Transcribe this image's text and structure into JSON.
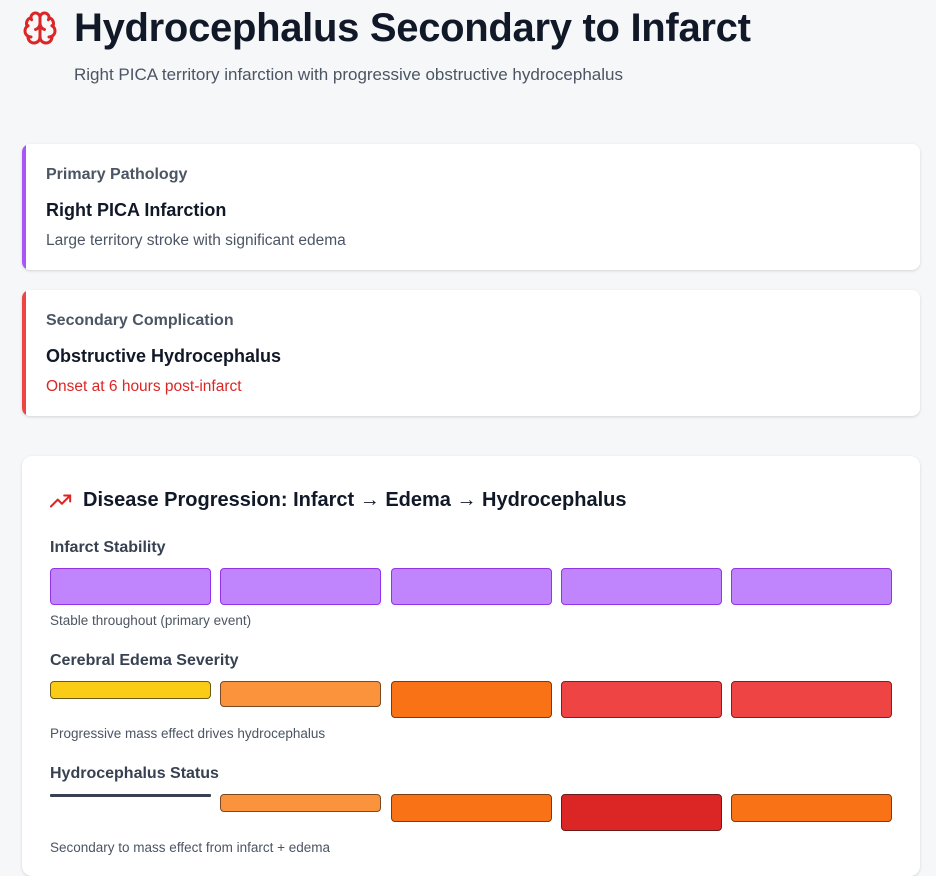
{
  "header": {
    "title": "Hydrocephalus Secondary to Infarct",
    "subtitle": "Right PICA territory infarction with progressive obstructive hydrocephalus",
    "icon": "brain-icon"
  },
  "primary": {
    "label": "Primary Pathology",
    "heading": "Right PICA Infarction",
    "description": "Large territory stroke with significant edema",
    "accent": "#a855f7"
  },
  "secondary": {
    "label": "Secondary Complication",
    "heading": "Obstructive Hydrocephalus",
    "description": "Onset at 6 hours post-infarct",
    "accent": "#ef4444"
  },
  "progression": {
    "title": "Disease Progression: Infarct → Edema → Hydrocephalus",
    "icon": "trending-up-icon",
    "rows": [
      {
        "label": "Infarct Stability",
        "note": "Stable throughout (primary event)",
        "cells": [
          {
            "level": 1.0,
            "color": "#c084fc",
            "border": "#9333ea"
          },
          {
            "level": 1.0,
            "color": "#c084fc",
            "border": "#9333ea"
          },
          {
            "level": 1.0,
            "color": "#c084fc",
            "border": "#9333ea"
          },
          {
            "level": 1.0,
            "color": "#c084fc",
            "border": "#9333ea"
          },
          {
            "level": 1.0,
            "color": "#c084fc",
            "border": "#9333ea"
          }
        ]
      },
      {
        "label": "Cerebral Edema Severity",
        "note": "Progressive mass effect drives hydrocephalus",
        "cells": [
          {
            "level": 0.5,
            "color": "#facc15",
            "border": "#6b5b16"
          },
          {
            "level": 0.7,
            "color": "#fb923c",
            "border": "#7a4a24"
          },
          {
            "level": 1.0,
            "color": "#f97316",
            "border": "#7a3a12"
          },
          {
            "level": 1.0,
            "color": "#ef4444",
            "border": "#7a2323"
          },
          {
            "level": 1.0,
            "color": "#ef4444",
            "border": "#7a2323"
          }
        ]
      },
      {
        "label": "Hydrocephalus Status",
        "note": "Secondary to mass effect from infarct + edema",
        "cells": [
          {
            "level": 0.0,
            "color": "#374151",
            "border": "#374151"
          },
          {
            "level": 0.5,
            "color": "#fb923c",
            "border": "#7a4a24"
          },
          {
            "level": 0.75,
            "color": "#f97316",
            "border": "#7a3a12"
          },
          {
            "level": 1.0,
            "color": "#dc2626",
            "border": "#6b1a1a"
          },
          {
            "level": 0.75,
            "color": "#f97316",
            "border": "#7a3a12"
          }
        ]
      }
    ]
  }
}
